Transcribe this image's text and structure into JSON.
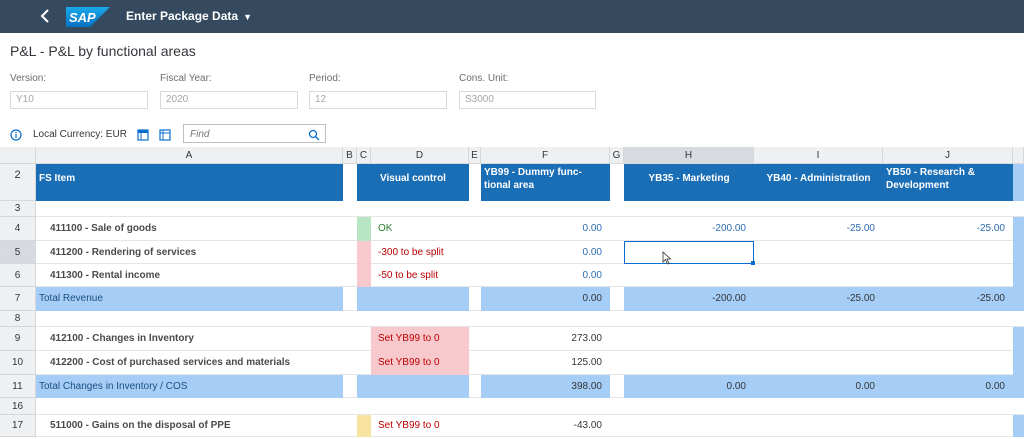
{
  "shell": {
    "back_icon": "back-chevron-icon",
    "logo_text": "SAP",
    "app_title": "Enter Package Data"
  },
  "page": {
    "title": "P&L - P&L by functional areas"
  },
  "filters": [
    {
      "label": "Version:",
      "value": "Y10"
    },
    {
      "label": "Fiscal Year:",
      "value": "2020"
    },
    {
      "label": "Period:",
      "value": "12"
    },
    {
      "label": "Cons. Unit:",
      "value": "S3000"
    }
  ],
  "toolbar": {
    "currency": "Local Currency: EUR",
    "find_placeholder": "Find"
  },
  "columns": {
    "A": "A",
    "B": "B",
    "C": "C",
    "D": "D",
    "E": "E",
    "F": "F",
    "G": "G",
    "H": "H",
    "I": "I",
    "J": "J"
  },
  "header_row": {
    "row": "2",
    "fs_item": "FS Item",
    "visual_control": "Visual control",
    "yb99": "YB99 - Dummy func-\ntional area",
    "yb35": "YB35 - Marketing",
    "yb40": "YB40 - Administration",
    "yb50": "YB50 - Research &\nDevelopment"
  },
  "rows": [
    {
      "row": "3",
      "item": "",
      "vc": "",
      "f": "",
      "h": "",
      "i": "",
      "j": ""
    },
    {
      "row": "4",
      "item": "411100 - Sale of goods",
      "vc": "OK",
      "f": "0.00",
      "h": "-200.00",
      "i": "-25.00",
      "j": "-25.00"
    },
    {
      "row": "5",
      "item": "411200 - Rendering of services",
      "vc": "-300 to be split",
      "f": "0.00",
      "h": "",
      "i": "",
      "j": ""
    },
    {
      "row": "6",
      "item": "411300 - Rental income",
      "vc": "-50 to be split",
      "f": "0.00",
      "h": "",
      "i": "",
      "j": ""
    },
    {
      "row": "7",
      "item": "Total Revenue",
      "vc": "",
      "f": "0.00",
      "h": "-200.00",
      "i": "-25.00",
      "j": "-25.00"
    },
    {
      "row": "8",
      "item": "",
      "vc": "",
      "f": "",
      "h": "",
      "i": "",
      "j": ""
    },
    {
      "row": "9",
      "item": "412100 - Changes in Inventory",
      "vc": "Set YB99 to 0",
      "f": "273.00",
      "h": "",
      "i": "",
      "j": ""
    },
    {
      "row": "10",
      "item": "412200 - Cost of purchased services and materials",
      "vc": "Set YB99 to 0",
      "f": "125.00",
      "h": "",
      "i": "",
      "j": ""
    },
    {
      "row": "11",
      "item": "Total Changes in Inventory / COS",
      "vc": "",
      "f": "398.00",
      "h": "0.00",
      "i": "0.00",
      "j": "0.00"
    },
    {
      "row": "16",
      "item": "",
      "vc": "",
      "f": "",
      "h": "",
      "i": "",
      "j": ""
    },
    {
      "row": "17",
      "item": "511000 - Gains on the disposal of PPE",
      "vc": "Set YB99 to 0",
      "f": "-43.00",
      "h": "",
      "i": "",
      "j": ""
    }
  ],
  "colors": {
    "shell": "#354a5f",
    "header_blue": "#1a6eb5",
    "total_blue": "#a6cdf5",
    "ok_green": "#b8e6c4",
    "warn_red": "#f7c8cc",
    "warn_yellow": "#f9e3a1"
  }
}
